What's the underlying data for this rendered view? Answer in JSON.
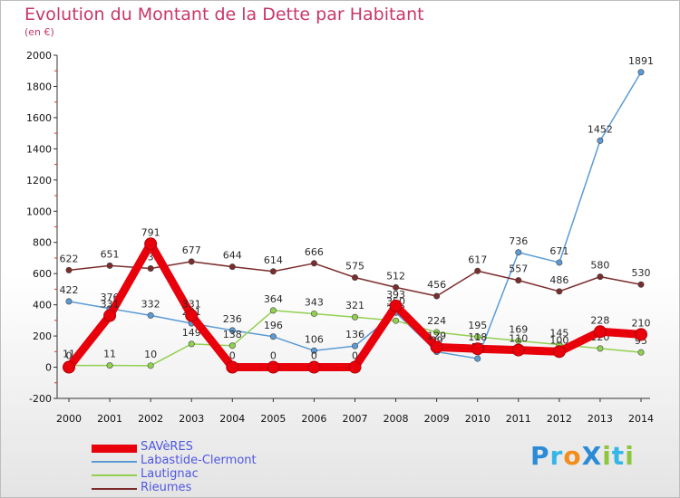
{
  "title": "Evolution du Montant de la Dette par Habitant",
  "subtitle": "(en €)",
  "logo": {
    "text": "ProXiti",
    "letters": [
      {
        "ch": "P",
        "color": "#2b8bd6"
      },
      {
        "ch": "r",
        "color": "#35b6e8"
      },
      {
        "ch": "o",
        "color": "#f28c1b"
      },
      {
        "ch": "X",
        "color": "#2b8bd6"
      },
      {
        "ch": "i",
        "color": "#8cc63f"
      },
      {
        "ch": "t",
        "color": "#35b6e8"
      },
      {
        "ch": "i",
        "color": "#8cc63f"
      }
    ]
  },
  "chart_data": {
    "type": "line",
    "title": "Evolution du Montant de la Dette par Habitant",
    "ylabel": "(en €)",
    "xlabel": "",
    "x": [
      "2000",
      "2001",
      "2002",
      "2003",
      "2004",
      "2005",
      "2006",
      "2007",
      "2008",
      "2009",
      "2010",
      "2011",
      "2012",
      "2013",
      "2014"
    ],
    "ylim": [
      -200,
      2000
    ],
    "yticks": [
      "-200",
      "0",
      "200",
      "400",
      "600",
      "800",
      "1000",
      "1200",
      "1400",
      "1600",
      "1800",
      "2000"
    ],
    "grid": false,
    "legend_position": "bottom-left",
    "series": [
      {
        "name": "SAVèRES",
        "color": "#e8000b",
        "emphasis": true,
        "values": [
          0,
          331,
          791,
          331,
          0,
          0,
          0,
          0,
          393,
          129,
          118,
          110,
          100,
          228,
          210
        ],
        "labels": [
          "0",
          "331",
          "791",
          "331",
          "0",
          "0",
          "0",
          "0",
          "393",
          "129",
          "118",
          "110",
          "100",
          "228",
          "210"
        ]
      },
      {
        "name": "Labastide-Clermont",
        "color": "#5b9bd5",
        "emphasis": false,
        "values": [
          422,
          376,
          332,
          281,
          236,
          196,
          106,
          136,
          350,
          99,
          55,
          736,
          671,
          1452,
          1891
        ],
        "labels": [
          "422",
          "376",
          "332",
          "281",
          "236",
          "196",
          "106",
          "136",
          "350",
          "99",
          "55",
          "736",
          "671",
          "1452",
          "1891"
        ]
      },
      {
        "name": "Lautignac",
        "color": "#92d050",
        "emphasis": false,
        "values": [
          11,
          11,
          10,
          149,
          138,
          364,
          343,
          321,
          298,
          224,
          195,
          169,
          145,
          120,
          95
        ],
        "labels": [
          "11",
          "11",
          "10",
          "149",
          "138",
          "364",
          "343",
          "321",
          "298",
          "224",
          "195",
          "169",
          "145",
          "120",
          "95"
        ]
      },
      {
        "name": "Rieumes",
        "color": "#7b2c2c",
        "emphasis": false,
        "values": [
          622,
          651,
          633,
          677,
          644,
          614,
          666,
          575,
          512,
          456,
          617,
          557,
          486,
          580,
          530
        ],
        "labels": [
          "622",
          "651",
          "633",
          "677",
          "644",
          "614",
          "666",
          "575",
          "512",
          "456",
          "617",
          "557",
          "486",
          "580",
          "530"
        ]
      }
    ]
  }
}
